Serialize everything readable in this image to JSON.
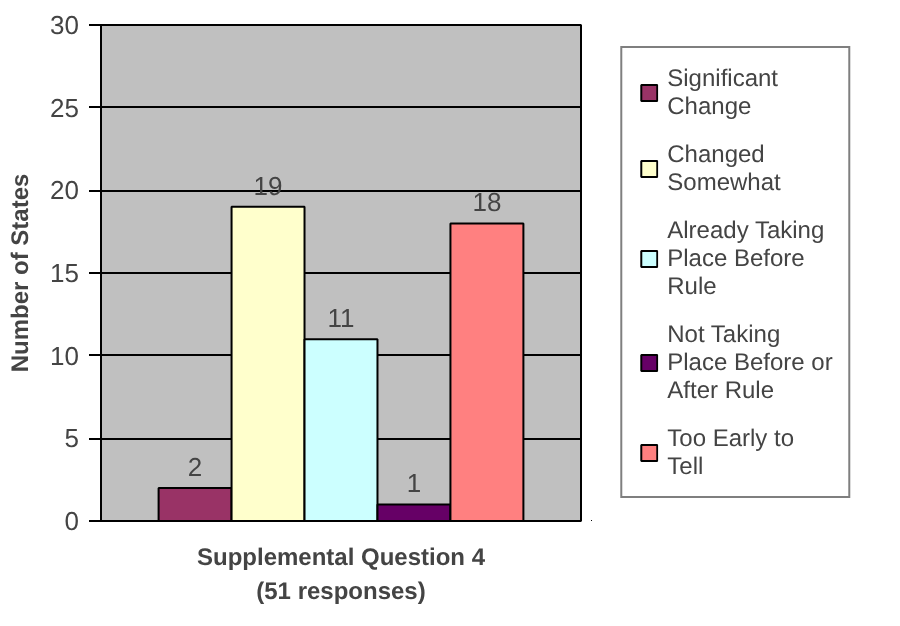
{
  "chart_data": {
    "type": "bar",
    "categories": [
      null
    ],
    "xlabel": "Supplemental Question 4\n(51 responses)",
    "ylabel": "Number of States",
    "ylim": [
      0,
      30
    ],
    "yticks": [
      0,
      5,
      10,
      15,
      20,
      25,
      30
    ],
    "grid": "y",
    "legend": "right",
    "data_labels": true,
    "series": [
      {
        "name": "Significant Change",
        "color": "#993366",
        "values": [
          2
        ]
      },
      {
        "name": "Changed Somewhat",
        "color": "#ffffcc",
        "values": [
          19
        ]
      },
      {
        "name": "Already Taking Place Before Rule",
        "color": "#ccffff",
        "values": [
          11
        ]
      },
      {
        "name": "Not Taking Place Before or After Rule",
        "color": "#660066",
        "values": [
          1
        ]
      },
      {
        "name": "Too Early to Tell",
        "color": "#ff8080",
        "values": [
          18
        ]
      }
    ]
  }
}
